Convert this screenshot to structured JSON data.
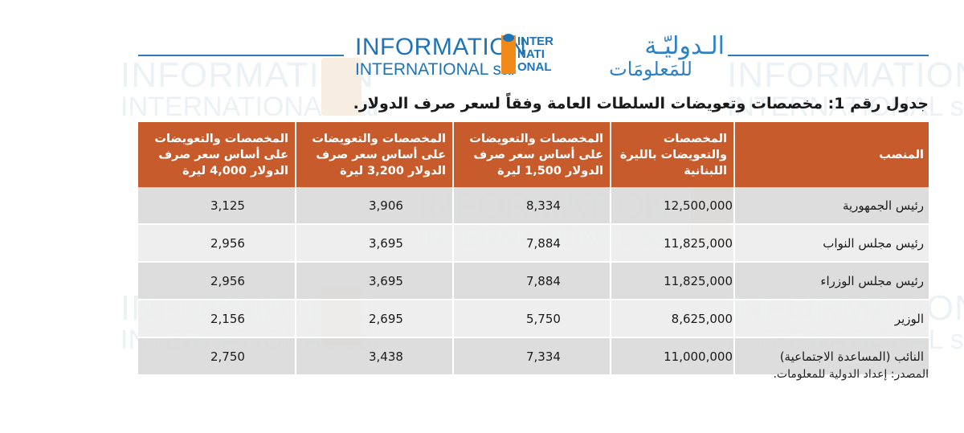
{
  "logo": {
    "en_line1": "INFORMATION",
    "en_line2": "INTERNATIONAL sal",
    "mark_lines": [
      "INTER",
      "NATI",
      "ONAL"
    ],
    "ar_line1": "الـدوليّـة",
    "ar_line2": "للمَعلومَات",
    "brand_blue": "#1f74b8",
    "brand_orange": "#f28a1a"
  },
  "title": "جدول رقم 1: مخصصات وتعويضات السلطات العامة وفقاً لسعر صرف الدولار.",
  "table": {
    "header_color": "#c75b2b",
    "headers": [
      "المنصب",
      "المخصصات والتعويضات بالليرة اللبنانية",
      "المخصصات والتعويضات على أساس سعر صرف الدولار 1,500 ليرة",
      "المخصصات والتعويضات على أساس سعر صرف الدولار 3,200 ليرة",
      "المخصصات والتعويضات على أساس سعر صرف الدولار 4,000 ليرة"
    ],
    "rows": [
      {
        "position": "رئيس الجمهورية",
        "lbp": "12,500,000",
        "usd_1500": "8,334",
        "usd_3200": "3,906",
        "usd_4000": "3,125"
      },
      {
        "position": "رئيس مجلس النواب",
        "lbp": "11,825,000",
        "usd_1500": "7,884",
        "usd_3200": "3,695",
        "usd_4000": "2,956"
      },
      {
        "position": "رئيس مجلس الوزراء",
        "lbp": "11,825,000",
        "usd_1500": "7,884",
        "usd_3200": "3,695",
        "usd_4000": "2,956"
      },
      {
        "position": "الوزير",
        "lbp": "8,625,000",
        "usd_1500": "5,750",
        "usd_3200": "2,695",
        "usd_4000": "2,156"
      },
      {
        "position": "النائب (المساعدة الاجتماعية)",
        "lbp": "11,000,000",
        "usd_1500": "7,334",
        "usd_3200": "3,438",
        "usd_4000": "2,750"
      }
    ]
  },
  "source": "المصدر: إعداد الدولية للمعلومات."
}
